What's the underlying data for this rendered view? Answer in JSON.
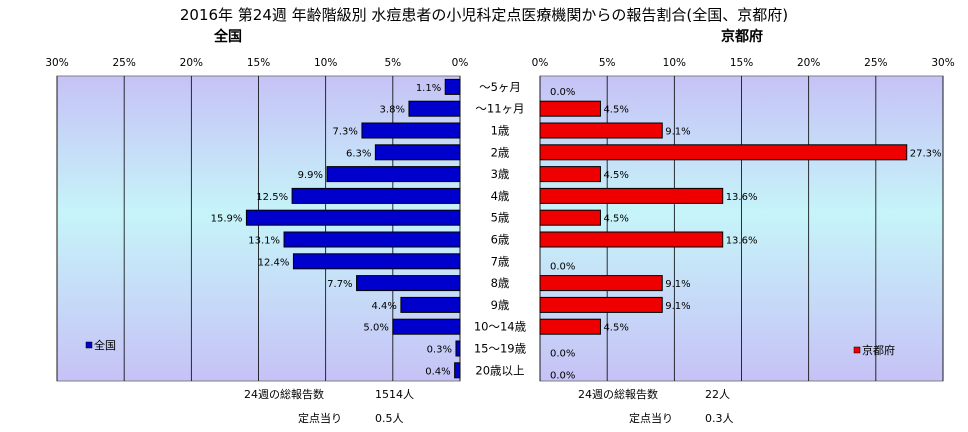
{
  "title": "2016年 第24週 年齢階級別 水痘患者の小児科定点医療機関からの報告割合(全国、京都府)",
  "colors": {
    "left_bar": "#0000cc",
    "right_bar": "#ee0000",
    "grid": "#000000"
  },
  "chart_data": [
    {
      "type": "bar",
      "orientation": "horizontal",
      "direction": "right-to-left",
      "subtitle": "全国",
      "legend": "全国",
      "legend_position": "bottom-left",
      "xlim": [
        0,
        30
      ],
      "tick_labels": [
        "0%",
        "5%",
        "10%",
        "15%",
        "20%",
        "25%",
        "30%"
      ],
      "categories": [
        "～5ヶ月",
        "～11ヶ月",
        "1歳",
        "2歳",
        "3歳",
        "4歳",
        "5歳",
        "6歳",
        "7歳",
        "8歳",
        "9歳",
        "10～14歳",
        "15～19歳",
        "20歳以上"
      ],
      "values": [
        1.1,
        3.8,
        7.3,
        6.3,
        9.9,
        12.5,
        15.9,
        13.1,
        12.4,
        7.7,
        4.4,
        5.0,
        0.3,
        0.4
      ],
      "data_labels": [
        "1.1%",
        "3.8%",
        "7.3%",
        "6.3%",
        "9.9%",
        "12.5%",
        "15.9%",
        "13.1%",
        "12.4%",
        "7.7%",
        "4.4%",
        "5.0%",
        "0.3%",
        "0.4%"
      ],
      "grid": true
    },
    {
      "type": "bar",
      "orientation": "horizontal",
      "direction": "left-to-right",
      "subtitle": "京都府",
      "legend": "京都府",
      "legend_position": "bottom-right",
      "xlim": [
        0,
        30
      ],
      "tick_labels": [
        "0%",
        "5%",
        "10%",
        "15%",
        "20%",
        "25%",
        "30%"
      ],
      "categories": [
        "～5ヶ月",
        "～11ヶ月",
        "1歳",
        "2歳",
        "3歳",
        "4歳",
        "5歳",
        "6歳",
        "7歳",
        "8歳",
        "9歳",
        "10～14歳",
        "15～19歳",
        "20歳以上"
      ],
      "values": [
        0.0,
        4.5,
        9.1,
        27.3,
        4.5,
        13.6,
        4.5,
        13.6,
        0.0,
        9.1,
        9.1,
        4.5,
        0.0,
        0.0
      ],
      "data_labels": [
        "0.0%",
        "4.5%",
        "9.1%",
        "27.3%",
        "4.5%",
        "13.6%",
        "4.5%",
        "13.6%",
        "0.0%",
        "9.1%",
        "9.1%",
        "4.5%",
        "0.0%",
        "0.0%"
      ],
      "grid": true
    }
  ],
  "footer": {
    "left_total_label": "24週の総報告数",
    "left_total_value": "1514人",
    "left_rate_label": "定点当り",
    "left_rate_value": "0.5人",
    "right_total_label": "24週の総報告数",
    "right_total_value": "22人",
    "right_rate_label": "定点当り",
    "right_rate_value": "0.3人"
  }
}
